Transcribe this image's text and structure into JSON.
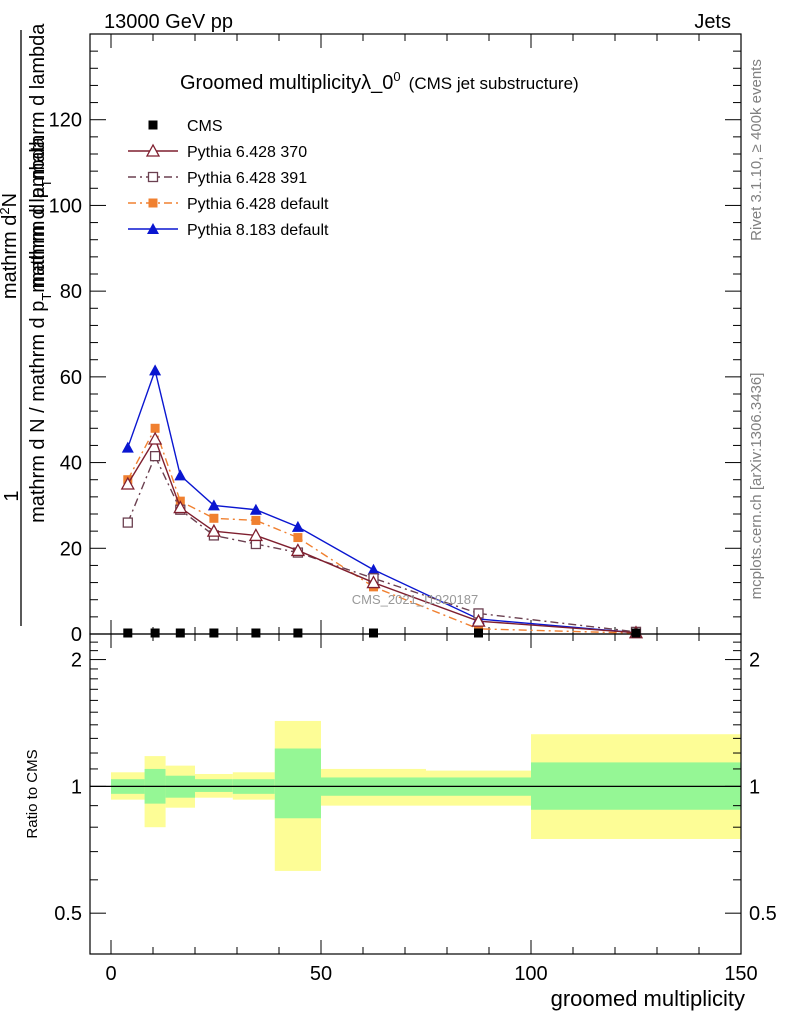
{
  "header": {
    "left": "13000 GeV pp",
    "right": "Jets"
  },
  "side_labels": {
    "rivet": "Rivet 3.1.10, ≥ 400k events",
    "mcplots": "mcplots.cern.ch [arXiv:1306.3436]"
  },
  "watermark": "CMS_2021_I1920187",
  "colors": {
    "cms": "#000000",
    "p370": "#7f1f2f",
    "p391": "#6b4050",
    "pdefault": "#f08030",
    "p8": "#0a16d0",
    "band_outer": "#fdfd96",
    "band_inner": "#95f795"
  },
  "chart_data": [
    {
      "type": "line",
      "title": "Groomed multiplicityλ_0",
      "title_sup": "0",
      "title_suffix": "(CMS jet substructure)",
      "xlabel": "groomed multiplicity",
      "ylabel_numerator": "1",
      "ylabel_main": "mathrm d N / mathrm d p",
      "ylabel_sub": "T",
      "ylabel_rest": "mathrm d lambda",
      "ylabel_top": "mathrm d",
      "ylabel_top_sup": "2",
      "ylabel_top_rest": "N",
      "ylabel_bottom": "mathrm d p",
      "ylabel_bottom_sub": "T",
      "ylabel_bottom_rest": "mathrm d lambda",
      "xlim": [
        -5,
        150
      ],
      "ylim": [
        0,
        140
      ],
      "yticks": [
        0,
        20,
        40,
        60,
        80,
        100,
        120
      ],
      "ytick_labels": [
        "0",
        "20",
        "40",
        "60",
        "80",
        "100",
        "120"
      ],
      "legend": [
        "CMS",
        "Pythia 6.428 370",
        "Pythia 6.428 391",
        "Pythia 6.428 default",
        "Pythia 8.183 default"
      ],
      "series": [
        {
          "name": "CMS",
          "marker": "square",
          "x": [
            4,
            10.5,
            16.5,
            24.5,
            34.5,
            44.5,
            62.5,
            87.5,
            125
          ],
          "values": [
            0.2,
            0.2,
            0.2,
            0.2,
            0.2,
            0.2,
            0.2,
            0.2,
            0.2
          ]
        },
        {
          "name": "Pythia 6.428 370",
          "marker": "triangle-open",
          "x": [
            4,
            10.5,
            16.5,
            24.5,
            34.5,
            44.5,
            62.5,
            87.5,
            125
          ],
          "values": [
            35,
            45.5,
            29.5,
            24,
            23,
            19.5,
            12,
            3,
            0.3
          ]
        },
        {
          "name": "Pythia 6.428 391",
          "marker": "square-open",
          "x": [
            4,
            10.5,
            16.5,
            24.5,
            34.5,
            44.5,
            62.5,
            87.5,
            125
          ],
          "values": [
            26,
            41.5,
            29,
            23,
            21,
            19,
            13,
            4.8,
            0.5
          ]
        },
        {
          "name": "Pythia 6.428 default",
          "marker": "square",
          "x": [
            4,
            10.5,
            16.5,
            24.5,
            34.5,
            44.5,
            62.5,
            87.5,
            125
          ],
          "values": [
            36,
            48,
            31,
            27,
            26.5,
            22.5,
            11,
            1.2,
            0.2
          ]
        },
        {
          "name": "Pythia 8.183 default",
          "marker": "triangle",
          "x": [
            4,
            10.5,
            16.5,
            24.5,
            34.5,
            44.5,
            62.5,
            87.5,
            125
          ],
          "values": [
            43.5,
            61.5,
            37,
            30,
            29,
            25,
            15,
            3.5,
            0.3
          ]
        }
      ]
    },
    {
      "type": "area",
      "title": "",
      "ylabel": "Ratio to CMS",
      "xlabel": "groomed multiplicity",
      "xlim": [
        -5,
        150
      ],
      "ylim": [
        0.4,
        2.3
      ],
      "yscale": "log",
      "xticks": [
        0,
        50,
        100,
        150
      ],
      "xtick_labels": [
        "0",
        "50",
        "100",
        "150"
      ],
      "yticks": [
        0.5,
        1,
        2
      ],
      "ytick_labels": [
        "0.5",
        "1",
        "2"
      ],
      "reference_line": 1,
      "bins": [
        {
          "x0": 0,
          "x1": 8,
          "outer": [
            0.93,
            1.08
          ],
          "inner": [
            0.96,
            1.04
          ]
        },
        {
          "x0": 8,
          "x1": 13,
          "outer": [
            0.8,
            1.18
          ],
          "inner": [
            0.91,
            1.1
          ]
        },
        {
          "x0": 13,
          "x1": 20,
          "outer": [
            0.89,
            1.12
          ],
          "inner": [
            0.94,
            1.06
          ]
        },
        {
          "x0": 20,
          "x1": 29,
          "outer": [
            0.94,
            1.07
          ],
          "inner": [
            0.97,
            1.04
          ]
        },
        {
          "x0": 29,
          "x1": 39,
          "outer": [
            0.93,
            1.08
          ],
          "inner": [
            0.96,
            1.04
          ]
        },
        {
          "x0": 39,
          "x1": 50,
          "outer": [
            0.63,
            1.43
          ],
          "inner": [
            0.84,
            1.23
          ]
        },
        {
          "x0": 50,
          "x1": 75,
          "outer": [
            0.9,
            1.1
          ],
          "inner": [
            0.95,
            1.05
          ]
        },
        {
          "x0": 75,
          "x1": 100,
          "outer": [
            0.9,
            1.09
          ],
          "inner": [
            0.95,
            1.05
          ]
        },
        {
          "x0": 100,
          "x1": 150,
          "outer": [
            0.75,
            1.33
          ],
          "inner": [
            0.88,
            1.14
          ]
        }
      ]
    }
  ]
}
